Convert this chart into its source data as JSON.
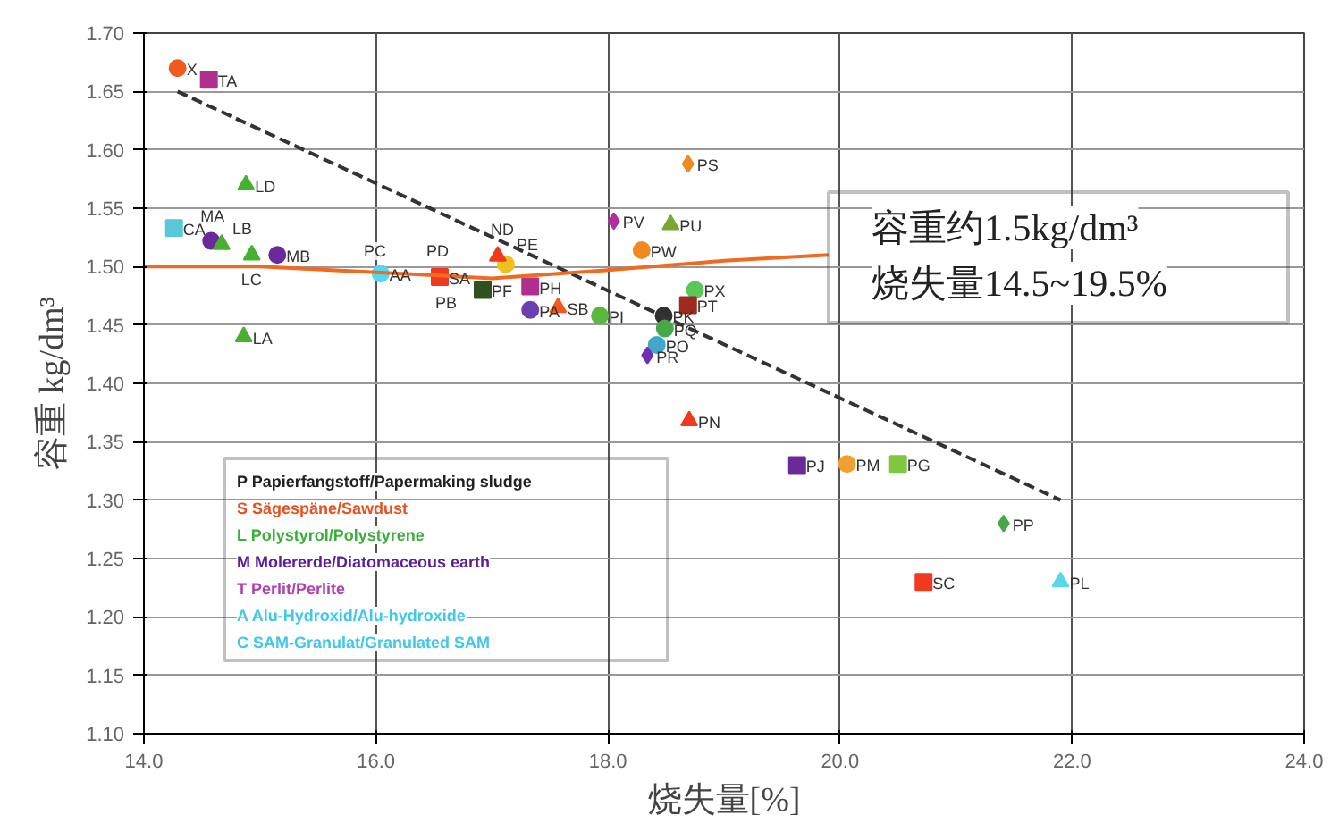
{
  "chart_data": {
    "type": "scatter",
    "xlabel": "烧失量[%]",
    "ylabel": "容重 kg/dm³",
    "xlim": [
      14,
      24
    ],
    "ylim": [
      1.1,
      1.7
    ],
    "xticks": [
      {
        "value": 14,
        "label": "14.0"
      },
      {
        "value": 16,
        "label": "16.0"
      },
      {
        "value": 18,
        "label": "18.0"
      },
      {
        "value": 20,
        "label": "20.0"
      },
      {
        "value": 22,
        "label": "22.0"
      },
      {
        "value": 24,
        "label": "24.0"
      }
    ],
    "yticks": [
      {
        "value": 1.1,
        "label": "1.10"
      },
      {
        "value": 1.15,
        "label": "1.15"
      },
      {
        "value": 1.2,
        "label": "1.20"
      },
      {
        "value": 1.25,
        "label": "1.25"
      },
      {
        "value": 1.3,
        "label": "1.30"
      },
      {
        "value": 1.35,
        "label": "1.35"
      },
      {
        "value": 1.4,
        "label": "1.40"
      },
      {
        "value": 1.45,
        "label": "1.45"
      },
      {
        "value": 1.5,
        "label": "1.50"
      },
      {
        "value": 1.55,
        "label": "1.55"
      },
      {
        "value": 1.6,
        "label": "1.60"
      },
      {
        "value": 1.65,
        "label": "1.65"
      },
      {
        "value": 1.7,
        "label": "1.70"
      }
    ],
    "grid": true,
    "series": [
      {
        "marker": "circle",
        "x": [
          14.29,
          14.58,
          15.15,
          16.04,
          17.12,
          17.33,
          17.93,
          18.29,
          18.75,
          18.48,
          18.49,
          18.42,
          20.06
        ],
        "values": [
          1.67,
          1.522,
          1.51,
          1.494,
          1.502,
          1.463,
          1.458,
          1.514,
          1.48,
          1.458,
          1.447,
          1.433,
          1.331
        ],
        "colors": [
          "#f05a1e",
          "#6a2a9a",
          "#6a2a9a",
          "#58d8f0",
          "#f0c020",
          "#6a40b0",
          "#58b840",
          "#f08a20",
          "#58c858",
          "#303030",
          "#48a848",
          "#40a8c8",
          "#f0a030"
        ]
      },
      {
        "marker": "square",
        "x": [
          14.56,
          14.26,
          16.55,
          16.92,
          17.33,
          18.69,
          19.63,
          20.5,
          20.72
        ],
        "values": [
          1.66,
          1.533,
          1.491,
          1.48,
          1.483,
          1.467,
          1.33,
          1.331,
          1.23
        ],
        "colors": [
          "#b03090",
          "#58c8d8",
          "#f03a20",
          "#305020",
          "#b03090",
          "#a02a20",
          "#6a2a9a",
          "#80c840",
          "#f03a20"
        ]
      },
      {
        "marker": "triangle",
        "x": [
          14.88,
          14.67,
          14.93,
          14.86,
          17.05,
          17.57,
          18.54,
          18.7,
          21.9
        ],
        "values": [
          1.57,
          1.519,
          1.51,
          1.44,
          1.509,
          1.465,
          1.536,
          1.368,
          1.23
        ],
        "colors": [
          "#48b030",
          "#48b030",
          "#48b030",
          "#48b030",
          "#f03a20",
          "#f05a20",
          "#78a830",
          "#f03a20",
          "#58d8e8"
        ]
      },
      {
        "marker": "diamond",
        "x": [
          18.05,
          18.69,
          18.34,
          21.41
        ],
        "values": [
          1.539,
          1.588,
          1.424,
          1.28
        ],
        "colors": [
          "#b030a0",
          "#f08a20",
          "#7030b0",
          "#48a848"
        ]
      },
      {
        "type": "line",
        "color": "#333333",
        "line_style": "dashed",
        "x": [
          14.29,
          21.9
        ],
        "values": [
          1.65,
          1.3
        ]
      },
      {
        "type": "line",
        "color": "#f06a20",
        "line_style": "solid",
        "x": [
          14,
          15,
          16,
          17,
          18,
          19,
          19.9
        ],
        "values": [
          1.5,
          1.5,
          1.495,
          1.49,
          1.497,
          1.505,
          1.51
        ]
      }
    ],
    "annotations": [
      {
        "text": "X",
        "x": 14.29,
        "y": 1.67
      },
      {
        "text": "TA",
        "x": 14.56,
        "y": 1.66
      },
      {
        "text": "LD",
        "x": 14.88,
        "y": 1.57
      },
      {
        "text": "MA",
        "x": 14.58,
        "y": 1.522
      },
      {
        "text": "LB",
        "x": 14.67,
        "y": 1.519
      },
      {
        "text": "CA",
        "x": 14.26,
        "y": 1.533
      },
      {
        "text": "LC",
        "x": 14.93,
        "y": 1.51
      },
      {
        "text": "MB",
        "x": 15.15,
        "y": 1.51
      },
      {
        "text": "LA",
        "x": 14.86,
        "y": 1.44
      },
      {
        "text": "AA",
        "x": 16.04,
        "y": 1.494
      },
      {
        "text": "SA",
        "x": 16.55,
        "y": 1.491
      },
      {
        "text": "ND",
        "x": 17.05,
        "y": 1.509
      },
      {
        "text": "PE",
        "x": 17.12,
        "y": 1.502
      },
      {
        "text": "PF",
        "x": 16.92,
        "y": 1.48
      },
      {
        "text": "PH",
        "x": 17.33,
        "y": 1.483
      },
      {
        "text": "PA",
        "x": 17.33,
        "y": 1.463
      },
      {
        "text": "SB",
        "x": 17.57,
        "y": 1.465
      },
      {
        "text": "PI",
        "x": 17.93,
        "y": 1.458
      },
      {
        "text": "PV",
        "x": 18.05,
        "y": 1.539
      },
      {
        "text": "PW",
        "x": 18.29,
        "y": 1.514
      },
      {
        "text": "PU",
        "x": 18.54,
        "y": 1.536
      },
      {
        "text": "PS",
        "x": 18.69,
        "y": 1.588
      },
      {
        "text": "PX",
        "x": 18.75,
        "y": 1.48
      },
      {
        "text": "PT",
        "x": 18.69,
        "y": 1.467
      },
      {
        "text": "PK",
        "x": 18.48,
        "y": 1.458
      },
      {
        "text": "PQ",
        "x": 18.49,
        "y": 1.447
      },
      {
        "text": "PO",
        "x": 18.42,
        "y": 1.433
      },
      {
        "text": "PR",
        "x": 18.34,
        "y": 1.424
      },
      {
        "text": "PN",
        "x": 18.7,
        "y": 1.368
      },
      {
        "text": "PM",
        "x": 20.06,
        "y": 1.331
      },
      {
        "text": "PJ",
        "x": 19.63,
        "y": 1.33
      },
      {
        "text": "PG",
        "x": 20.5,
        "y": 1.331
      },
      {
        "text": "PP",
        "x": 21.41,
        "y": 1.28
      },
      {
        "text": "SC",
        "x": 20.72,
        "y": 1.23
      },
      {
        "text": "PL",
        "x": 21.9,
        "y": 1.23
      },
      "P Papierfangstoff/Papermaking sludge",
      "S Sägespäne/Sawdust",
      "L Polystyrol/Polystyrene",
      "M Molererde/Diatomaceous earth",
      "T Perlit/Perlite",
      "A Alu-Hydroxid/Alu-hydroxide",
      "C SAM-Granulat/Granulated SAM",
      "容重约1.5kg/dm³\n烧失量14.5~19.5%",
      "PC",
      "PD",
      "PB"
    ]
  }
}
